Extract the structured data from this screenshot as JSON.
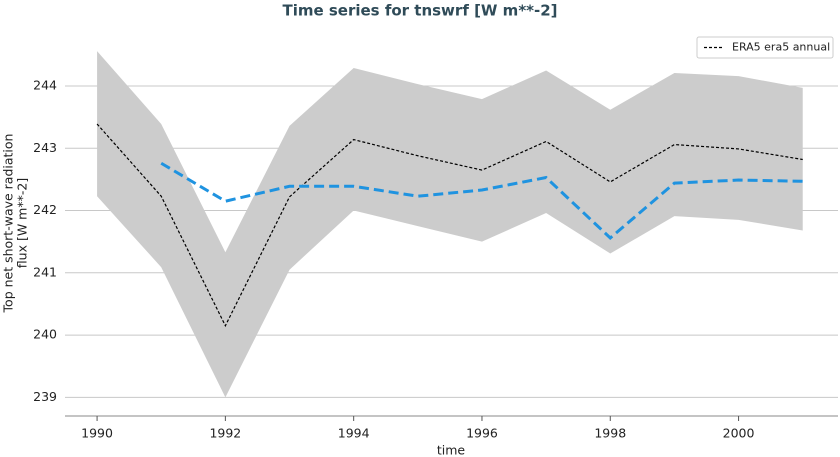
{
  "chart_data": {
    "type": "line",
    "title": "Time series for tnswrf [W m**-2]",
    "xlabel": "time",
    "ylabel": [
      "Top net short-wave radiation",
      "flux [W m**-2]"
    ],
    "x": [
      1990,
      1991,
      1992,
      1993,
      1994,
      1995,
      1996,
      1997,
      1998,
      1999,
      2000,
      2001
    ],
    "series": [
      {
        "name": "ERA5 era5 annual",
        "color": "#000000",
        "dash": "short",
        "values": [
          243.39,
          242.23,
          240.15,
          242.22,
          243.14,
          242.88,
          242.65,
          243.11,
          242.46,
          243.06,
          242.99,
          242.82
        ]
      },
      {
        "color": "#1f93e0",
        "dash": "long",
        "values": [
          null,
          242.76,
          242.15,
          242.39,
          242.39,
          242.23,
          242.33,
          242.53,
          241.56,
          242.44,
          242.49,
          242.47
        ]
      }
    ],
    "band": {
      "color": "#cccccc",
      "lower": [
        242.23,
        241.09,
        239.0,
        241.05,
        242.0,
        241.75,
        241.5,
        241.96,
        241.31,
        241.91,
        241.85,
        241.68
      ],
      "upper": [
        244.56,
        243.39,
        241.33,
        243.36,
        244.29,
        244.03,
        243.79,
        244.25,
        243.62,
        244.21,
        244.16,
        243.97
      ]
    },
    "xlim": [
      1989.5,
      2001.55
    ],
    "ylim": [
      238.7,
      244.9
    ],
    "xticks": [
      1990,
      1992,
      1994,
      1996,
      1998,
      2000
    ],
    "yticks": [
      239,
      240,
      241,
      242,
      243,
      244
    ],
    "grid": true,
    "legend": "upper right"
  }
}
